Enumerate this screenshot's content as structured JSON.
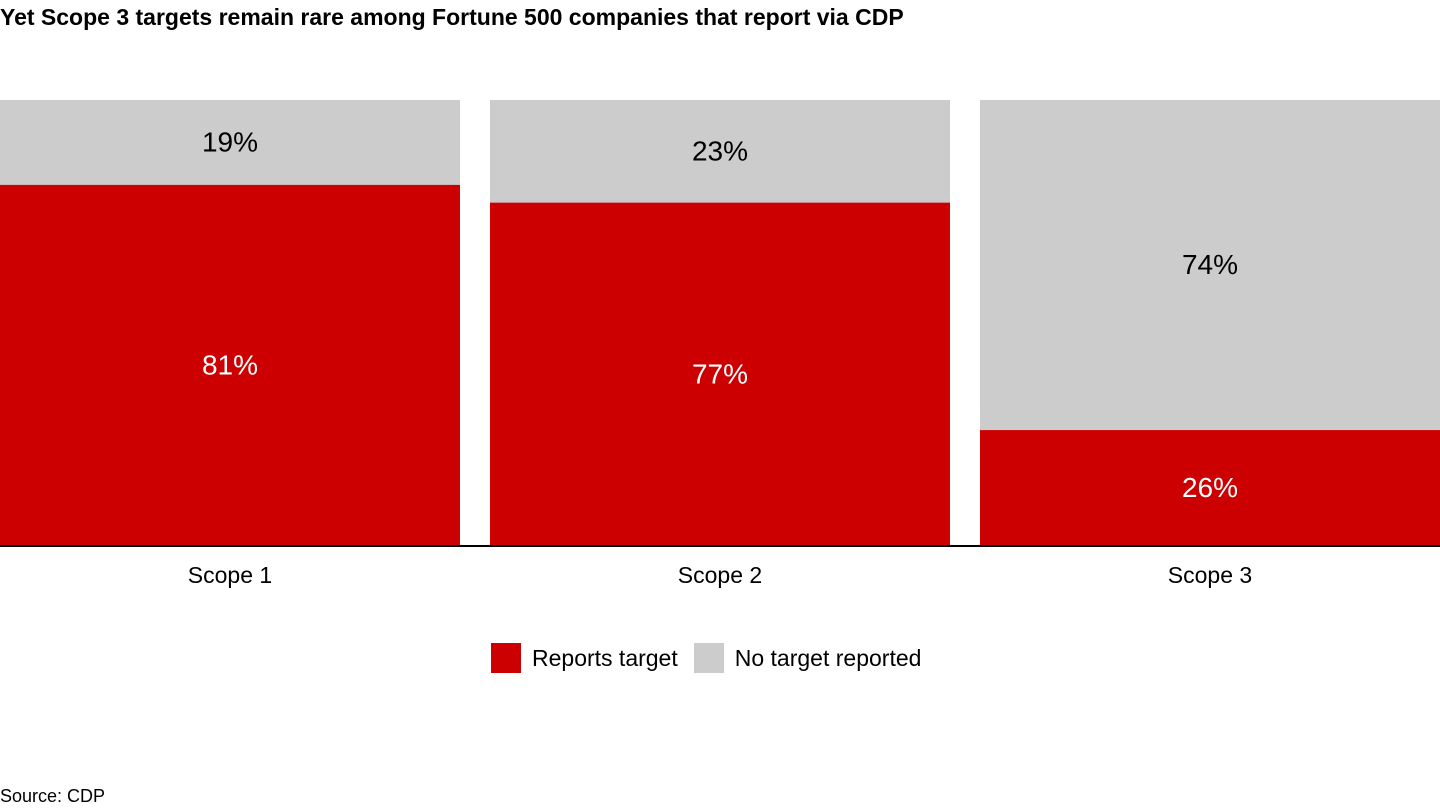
{
  "chart_data": {
    "type": "bar",
    "stacked": true,
    "title": "Yet Scope 3 targets remain rare among Fortune 500 companies that report via CDP",
    "categories": [
      "Scope 1",
      "Scope 2",
      "Scope 3"
    ],
    "series": [
      {
        "name": "Reports target",
        "values": [
          81,
          77,
          26
        ],
        "labels": [
          "81%",
          "77%",
          "26%"
        ],
        "color": "#cc0000",
        "label_color": "#ffffff"
      },
      {
        "name": "No target reported",
        "values": [
          19,
          23,
          74
        ],
        "labels": [
          "19%",
          "23%",
          "74%"
        ],
        "color": "#cccccc",
        "label_color": "#000000"
      }
    ],
    "ylim": [
      0,
      100
    ],
    "grid": false,
    "legend_position": "bottom"
  },
  "source": "Source: CDP",
  "colors": {
    "reports_target": "#cc0000",
    "no_target": "#cccccc",
    "axis": "#000000"
  }
}
